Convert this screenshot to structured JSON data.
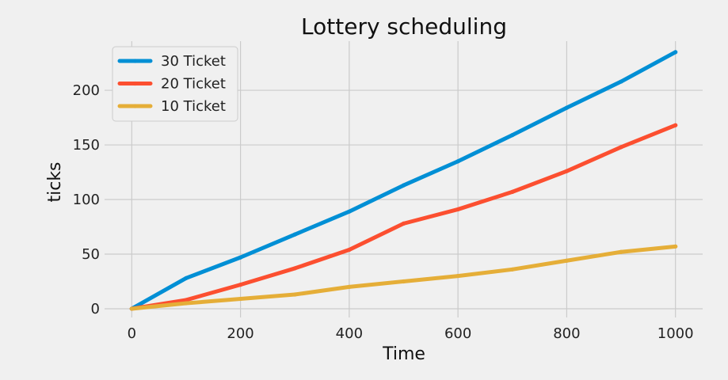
{
  "chart_data": {
    "type": "line",
    "title": "Lottery scheduling",
    "xlabel": "Time",
    "ylabel": "ticks",
    "xlim": [
      -50,
      1050
    ],
    "ylim": [
      -8,
      245
    ],
    "xticks": [
      0,
      200,
      400,
      600,
      800,
      1000
    ],
    "yticks": [
      0,
      50,
      100,
      150,
      200
    ],
    "grid": true,
    "legend_position": "top-left",
    "x": [
      0,
      100,
      200,
      300,
      400,
      500,
      600,
      700,
      800,
      900,
      1000
    ],
    "series": [
      {
        "name": "30 Ticket",
        "color": "#008fd5",
        "values": [
          0,
          28,
          47,
          68,
          89,
          113,
          135,
          159,
          184,
          208,
          235
        ]
      },
      {
        "name": "20 Ticket",
        "color": "#fc4f30",
        "values": [
          0,
          8,
          22,
          37,
          54,
          78,
          91,
          107,
          126,
          148,
          168
        ]
      },
      {
        "name": "10 Ticket",
        "color": "#e5ae38",
        "values": [
          0,
          5,
          9,
          13,
          20,
          25,
          30,
          36,
          44,
          52,
          57
        ]
      }
    ]
  }
}
